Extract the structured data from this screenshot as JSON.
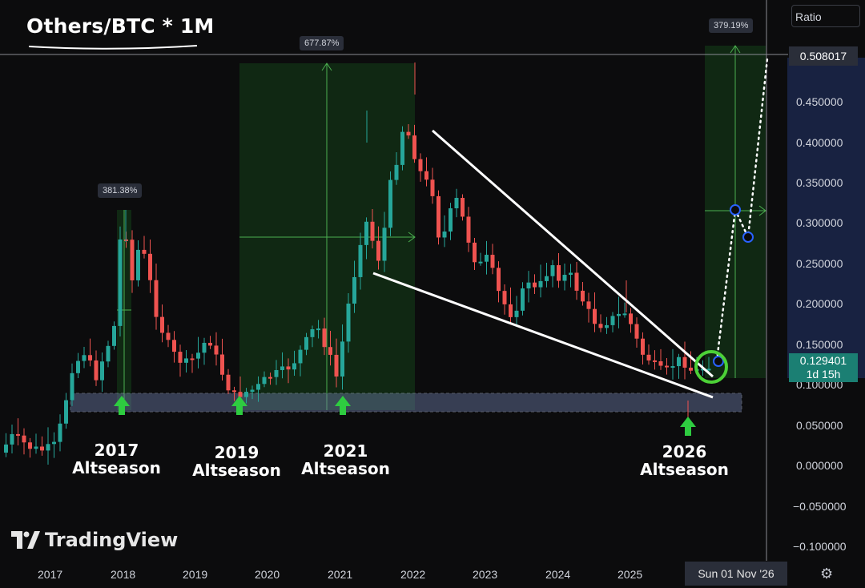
{
  "header": {
    "title": "Others/BTC * 1M",
    "scale_mode": "Ratio"
  },
  "chart_data": {
    "type": "candlestick",
    "title": "Others/BTC * 1M",
    "y_axis": {
      "ticks": [
        "0.450000",
        "0.400000",
        "0.350000",
        "0.300000",
        "0.250000",
        "0.200000",
        "0.150000",
        "0.100000",
        "0.050000",
        "0.000000",
        "−0.050000",
        "−0.100000"
      ],
      "range": [
        -0.11,
        0.52
      ]
    },
    "x_axis": {
      "ticks": [
        "2017",
        "2018",
        "2019",
        "2020",
        "2021",
        "2022",
        "2023",
        "2024",
        "2025"
      ]
    },
    "current_price": "0.129401",
    "countdown": "1d 15h",
    "crosshair_price": "0.508017",
    "crosshair_date": "Sun 01 Nov '26",
    "measure_labels": [
      "381.38%",
      "677.87%",
      "379.19%"
    ],
    "annotations": [
      {
        "year": "2017",
        "label": "Altseason"
      },
      {
        "year": "2019",
        "label": "Altseason"
      },
      {
        "year": "2021",
        "label": "Altseason"
      },
      {
        "year": "2026",
        "label": "Altseason"
      }
    ],
    "colors": {
      "up": "#26a69a",
      "down": "#ef5350",
      "zone": "#1b5e20",
      "support": "#90a4c8"
    }
  },
  "branding": {
    "logo_text": "TradingView"
  }
}
